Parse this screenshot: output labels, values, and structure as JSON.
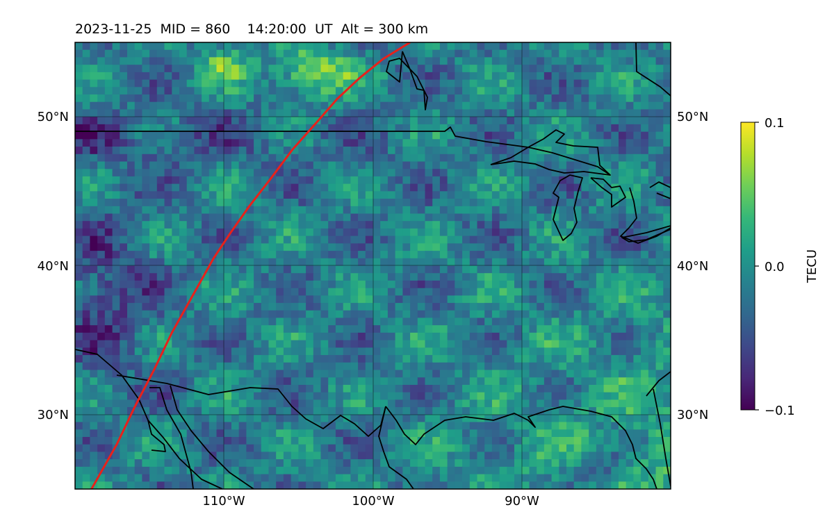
{
  "title": "2023-11-25  MID = 860    14:20:00  UT  Alt = 300 km",
  "map": {
    "lon_range": [
      -120,
      -80
    ],
    "lat_range": [
      25,
      55
    ],
    "lon_ticks": [
      -110,
      -100,
      -90
    ],
    "lat_ticks": [
      30,
      40,
      50
    ],
    "lon_tick_labels": [
      "110°W",
      "100°W",
      "90°W"
    ],
    "lat_tick_labels": [
      "30°N",
      "40°N",
      "50°N"
    ],
    "gridlines": true,
    "colormap": "viridis",
    "field_description": "TEC perturbation field on a lat/lon pixel grid; larger positive values in the southeast (Gulf coast / southeastern US) and a bright patch near 53°N 104°W, negative patches around 48–50°N west of 100°W",
    "track": {
      "color": "#e8211b",
      "lon": [
        -118.9,
        -117.2,
        -116.0,
        -114.7,
        -113.5,
        -112.1,
        -110.7,
        -109.5,
        -108.3,
        -106.9,
        -105.4,
        -103.8,
        -102.4,
        -100.9,
        -99.3,
        -97.5
      ],
      "lat": [
        25.0,
        28.0,
        30.5,
        33.0,
        35.5,
        38.0,
        40.5,
        42.3,
        44.0,
        45.8,
        47.8,
        49.6,
        51.2,
        52.6,
        53.9,
        55.0
      ]
    },
    "outline_color": "#000000"
  },
  "colorbar": {
    "label": "TECU",
    "min": -0.1,
    "max": 0.1,
    "ticks": [
      0.1,
      0.0,
      -0.1
    ],
    "tick_labels": [
      "0.1",
      "0.0",
      "−0.1"
    ],
    "colors": [
      "#440154",
      "#482878",
      "#3e4989",
      "#31688e",
      "#26828e",
      "#1f9e89",
      "#35b779",
      "#6ece58",
      "#b5de2b",
      "#fde725"
    ]
  }
}
